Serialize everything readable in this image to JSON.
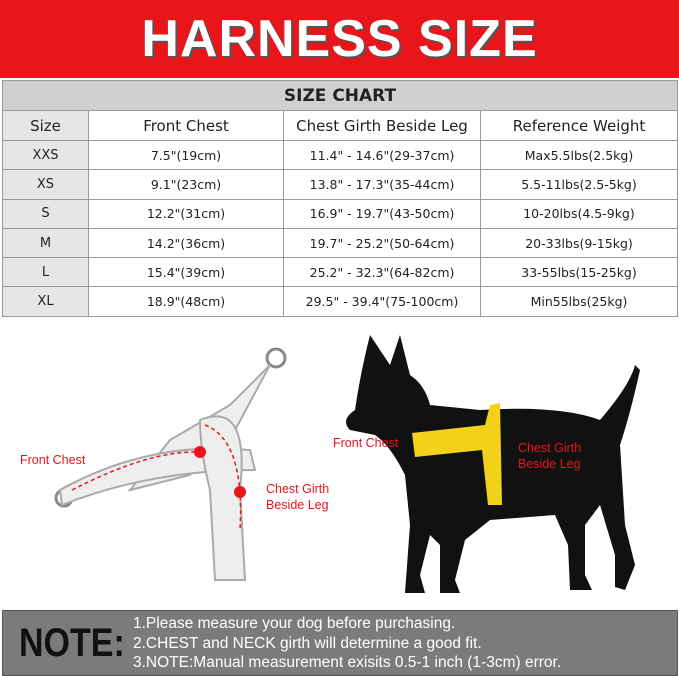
{
  "banner": {
    "title": "HARNESS SIZE"
  },
  "table": {
    "title": "SIZE CHART",
    "headers": [
      "Size",
      "Front Chest",
      "Chest Girth Beside Leg",
      "Reference Weight"
    ],
    "rows": [
      [
        "XXS",
        "7.5\"(19cm)",
        "11.4\" - 14.6\"(29-37cm)",
        "Max5.5lbs(2.5kg)"
      ],
      [
        "XS",
        "9.1\"(23cm)",
        "13.8\" - 17.3\"(35-44cm)",
        "5.5-11lbs(2.5-5kg)"
      ],
      [
        "S",
        "12.2\"(31cm)",
        "16.9\" - 19.7\"(43-50cm)",
        "10-20lbs(4.5-9kg)"
      ],
      [
        "M",
        "14.2\"(36cm)",
        "19.7\" - 25.2\"(50-64cm)",
        "20-33lbs(9-15kg)"
      ],
      [
        "L",
        "15.4\"(39cm)",
        "25.2\" - 32.3\"(64-82cm)",
        "33-55lbs(15-25kg)"
      ],
      [
        "XL",
        "18.9\"(48cm)",
        "29.5\" - 39.4\"(75-100cm)",
        "Min55lbs(25kg)"
      ]
    ]
  },
  "illustration": {
    "harness_front_chest": "Front Chest",
    "harness_girth_1": "Chest Girth",
    "harness_girth_2": "Beside Leg",
    "dog_front_chest": "Front Chest",
    "dog_girth_1": "Chest Girth",
    "dog_girth_2": "Beside Leg"
  },
  "colors": {
    "accent": "#e8151b",
    "tape": "#f2d21b"
  },
  "note": {
    "label": "NOTE:",
    "lines": [
      "1.Please measure your dog before purchasing.",
      "2.CHEST and NECK girth will determine a good fit.",
      "3.NOTE:Manual measurement exisits 0.5-1 inch (1-3cm) error."
    ]
  }
}
